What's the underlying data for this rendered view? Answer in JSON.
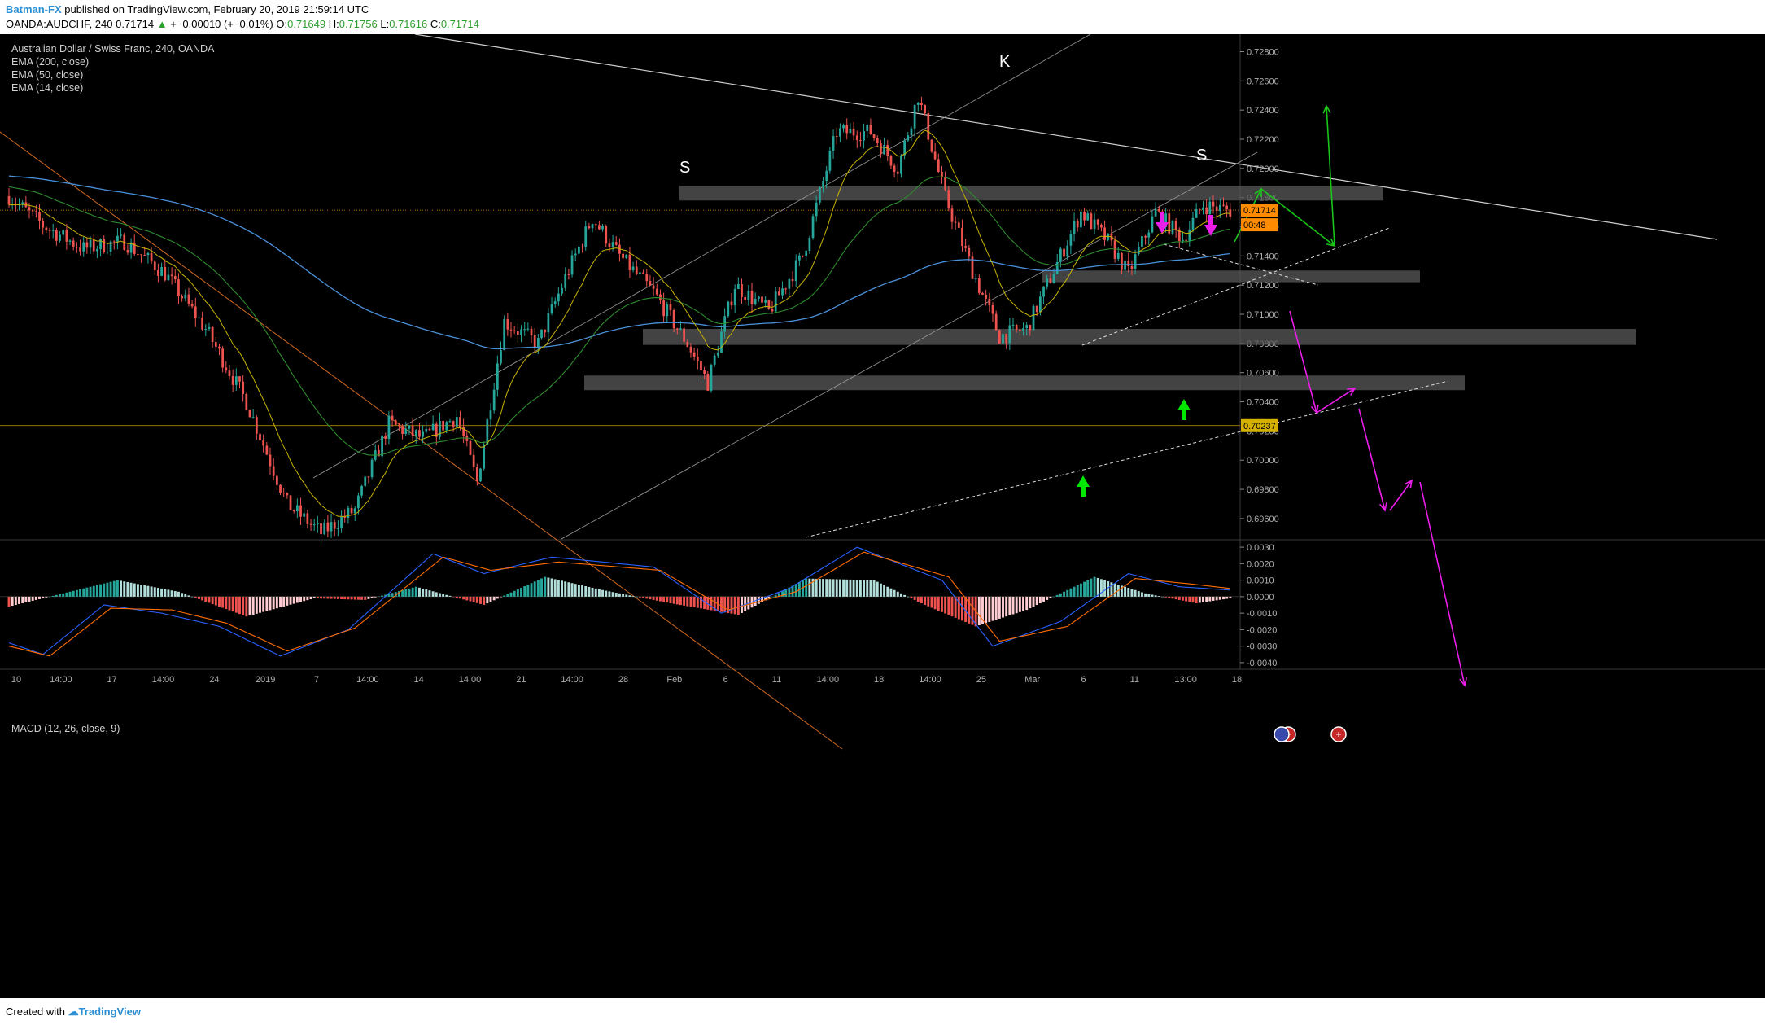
{
  "header": {
    "author": "Batman-FX",
    "published_text": " published on TradingView.com, February 20, 2019 21:59:14 UTC",
    "symbol_line": {
      "symbol": "OANDA:AUDCHF, 240",
      "last": "0.71714",
      "change": "+−0.00010 (+−0.01%)",
      "open_label": "O:",
      "open": "0.71649",
      "high_label": "H:",
      "high": "0.71756",
      "low_label": "L:",
      "low": "0.71616",
      "close_label": "C:",
      "close": "0.71714"
    }
  },
  "legend": {
    "title": "Australian Dollar / Swiss Franc, 240, OANDA",
    "ema200": "EMA (200, close)",
    "ema50": "EMA (50, close)",
    "ema14": "EMA (14, close)",
    "macd": "MACD (12, 26, close, 9)"
  },
  "footer": {
    "created_with": "Created with",
    "brand": "TradingView"
  },
  "colors": {
    "up": "#26a69a",
    "down": "#ef5350",
    "ema200": "#4a90d9",
    "ema50": "#2e8b2e",
    "ema14": "#c8b400",
    "macd": "#2962ff",
    "signal": "#ff6d00",
    "green_arrow": "#19c519",
    "magenta_arrow": "#e91ee9",
    "bright_green": "#00e600"
  },
  "chart_data": [
    {
      "type": "candlestick",
      "title": "Australian Dollar / Swiss Franc, 240, OANDA",
      "ylim": [
        0.6946,
        0.7292
      ],
      "y_ticks": [
        "0.72800",
        "0.72600",
        "0.72400",
        "0.72200",
        "0.72000",
        "0.71800",
        "0.71600",
        "0.71400",
        "0.71200",
        "0.71000",
        "0.70800",
        "0.70600",
        "0.70400",
        "0.70200",
        "0.70000",
        "0.69800",
        "0.69600"
      ],
      "x_ticks": [
        "10",
        "14:00",
        "17",
        "14:00",
        "24",
        "2019",
        "7",
        "14:00",
        "14",
        "14:00",
        "21",
        "14:00",
        "28",
        "Feb",
        "6",
        "11",
        "14:00",
        "18",
        "14:00",
        "25",
        "Mar",
        "6",
        "11",
        "13:00",
        "18"
      ],
      "price_labels": {
        "last": "0.71714",
        "countdown": "00:48",
        "level": "0.70237"
      },
      "annotations": [
        "S",
        "K",
        "S"
      ],
      "key_prices": [
        {
          "x": 0,
          "y": 0.7181
        },
        {
          "x": 10,
          "y": 0.7161
        },
        {
          "x": 22,
          "y": 0.7145
        },
        {
          "x": 34,
          "y": 0.715
        },
        {
          "x": 46,
          "y": 0.7128
        },
        {
          "x": 58,
          "y": 0.709
        },
        {
          "x": 70,
          "y": 0.704
        },
        {
          "x": 82,
          "y": 0.697
        },
        {
          "x": 92,
          "y": 0.695
        },
        {
          "x": 102,
          "y": 0.6966
        },
        {
          "x": 112,
          "y": 0.7025
        },
        {
          "x": 122,
          "y": 0.7015
        },
        {
          "x": 132,
          "y": 0.703
        },
        {
          "x": 138,
          "y": 0.6985
        },
        {
          "x": 146,
          "y": 0.7095
        },
        {
          "x": 156,
          "y": 0.708
        },
        {
          "x": 164,
          "y": 0.7125
        },
        {
          "x": 172,
          "y": 0.7166
        },
        {
          "x": 180,
          "y": 0.714
        },
        {
          "x": 190,
          "y": 0.7115
        },
        {
          "x": 200,
          "y": 0.708
        },
        {
          "x": 206,
          "y": 0.7053
        },
        {
          "x": 214,
          "y": 0.712
        },
        {
          "x": 224,
          "y": 0.7102
        },
        {
          "x": 234,
          "y": 0.714
        },
        {
          "x": 244,
          "y": 0.7225
        },
        {
          "x": 254,
          "y": 0.7225
        },
        {
          "x": 262,
          "y": 0.72
        },
        {
          "x": 268,
          "y": 0.725
        },
        {
          "x": 276,
          "y": 0.718
        },
        {
          "x": 284,
          "y": 0.713
        },
        {
          "x": 292,
          "y": 0.7085
        },
        {
          "x": 300,
          "y": 0.709
        },
        {
          "x": 308,
          "y": 0.713
        },
        {
          "x": 316,
          "y": 0.717
        },
        {
          "x": 324,
          "y": 0.715
        },
        {
          "x": 330,
          "y": 0.7128
        },
        {
          "x": 338,
          "y": 0.717
        },
        {
          "x": 346,
          "y": 0.7152
        },
        {
          "x": 352,
          "y": 0.7175
        },
        {
          "x": 360,
          "y": 0.7171
        }
      ]
    },
    {
      "type": "bar",
      "title": "MACD (12, 26, close, 9)",
      "ylim": [
        -0.0043,
        0.0034
      ],
      "y_ticks": [
        "0.0030",
        "0.0020",
        "0.0010",
        "0.0000",
        "-0.0010",
        "-0.0020",
        "-0.0030",
        "-0.0040"
      ],
      "histogram_key": [
        {
          "x": 0,
          "y": -0.0006
        },
        {
          "x": 20,
          "y": 0.0004
        },
        {
          "x": 32,
          "y": 0.001
        },
        {
          "x": 50,
          "y": 0.0003
        },
        {
          "x": 70,
          "y": -0.0012
        },
        {
          "x": 90,
          "y": -0.0001
        },
        {
          "x": 105,
          "y": -0.0002
        },
        {
          "x": 120,
          "y": 0.0006
        },
        {
          "x": 140,
          "y": -0.0005
        },
        {
          "x": 158,
          "y": 0.0012
        },
        {
          "x": 175,
          "y": 0.0004
        },
        {
          "x": 195,
          "y": -0.0004
        },
        {
          "x": 215,
          "y": -0.0011
        },
        {
          "x": 235,
          "y": 0.0011
        },
        {
          "x": 255,
          "y": 0.001
        },
        {
          "x": 270,
          "y": -0.0005
        },
        {
          "x": 285,
          "y": -0.0018
        },
        {
          "x": 300,
          "y": -0.0008
        },
        {
          "x": 320,
          "y": 0.0012
        },
        {
          "x": 335,
          "y": 0.0002
        },
        {
          "x": 350,
          "y": -0.0004
        },
        {
          "x": 360,
          "y": -0.0001
        }
      ],
      "macd_key": [
        {
          "x": 0,
          "y": -0.0028
        },
        {
          "x": 10,
          "y": -0.0035
        },
        {
          "x": 28,
          "y": -0.0005
        },
        {
          "x": 45,
          "y": -0.001
        },
        {
          "x": 62,
          "y": -0.0018
        },
        {
          "x": 80,
          "y": -0.0036
        },
        {
          "x": 100,
          "y": -0.002
        },
        {
          "x": 125,
          "y": 0.0026
        },
        {
          "x": 140,
          "y": 0.0014
        },
        {
          "x": 160,
          "y": 0.0024
        },
        {
          "x": 190,
          "y": 0.0018
        },
        {
          "x": 210,
          "y": -0.001
        },
        {
          "x": 230,
          "y": 0.0005
        },
        {
          "x": 250,
          "y": 0.003
        },
        {
          "x": 275,
          "y": 0.001
        },
        {
          "x": 290,
          "y": -0.003
        },
        {
          "x": 310,
          "y": -0.0015
        },
        {
          "x": 330,
          "y": 0.0014
        },
        {
          "x": 345,
          "y": 0.0006
        },
        {
          "x": 360,
          "y": 0.0004
        }
      ],
      "signal_key": [
        {
          "x": 0,
          "y": -0.003
        },
        {
          "x": 12,
          "y": -0.0036
        },
        {
          "x": 30,
          "y": -0.0007
        },
        {
          "x": 48,
          "y": -0.0008
        },
        {
          "x": 64,
          "y": -0.0016
        },
        {
          "x": 82,
          "y": -0.0033
        },
        {
          "x": 102,
          "y": -0.0019
        },
        {
          "x": 128,
          "y": 0.0024
        },
        {
          "x": 142,
          "y": 0.0016
        },
        {
          "x": 162,
          "y": 0.0021
        },
        {
          "x": 192,
          "y": 0.0016
        },
        {
          "x": 212,
          "y": -0.0008
        },
        {
          "x": 232,
          "y": 0.0003
        },
        {
          "x": 252,
          "y": 0.0027
        },
        {
          "x": 277,
          "y": 0.0012
        },
        {
          "x": 292,
          "y": -0.0027
        },
        {
          "x": 312,
          "y": -0.0018
        },
        {
          "x": 332,
          "y": 0.0011
        },
        {
          "x": 347,
          "y": 0.0008
        },
        {
          "x": 360,
          "y": 0.0005
        }
      ]
    }
  ]
}
